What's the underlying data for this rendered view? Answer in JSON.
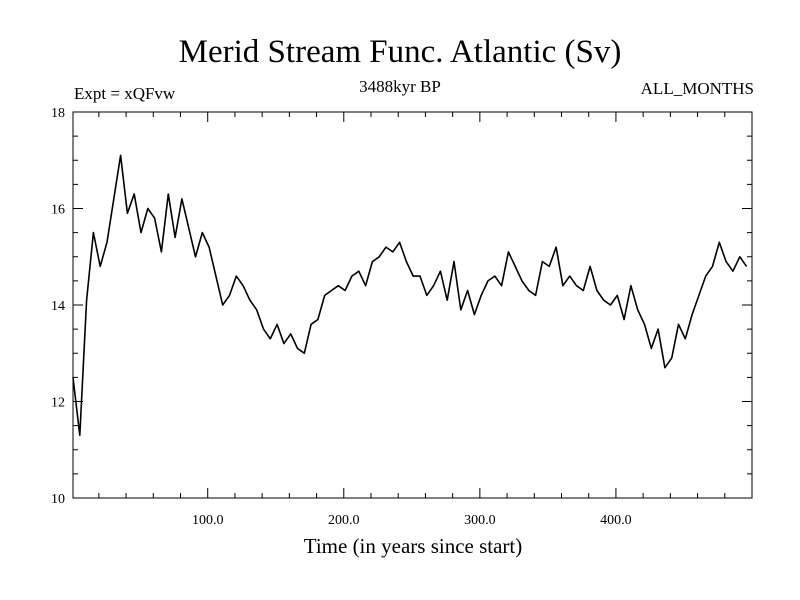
{
  "chart_data": {
    "type": "line",
    "title": "Merid Stream Func. Atlantic (Sv)",
    "subtitle": "3488kyr BP",
    "left_label": "Expt = xQFvw",
    "right_label": "ALL_MONTHS",
    "xlabel": "Time (in years since start)",
    "ylabel": "",
    "xlim": [
      1,
      500
    ],
    "ylim": [
      10,
      18
    ],
    "xticks": [
      100,
      200,
      300,
      400
    ],
    "xtick_labels": [
      "100.0",
      "200.0",
      "300.0",
      "400.0"
    ],
    "yticks": [
      10,
      12,
      14,
      16,
      18
    ],
    "ytick_labels": [
      "10",
      "12",
      "14",
      "16",
      "18"
    ],
    "series": [
      {
        "name": "Merid Stream Func. Atlantic",
        "x_start": 1,
        "x_step": 5,
        "values": [
          12.5,
          11.3,
          14.1,
          15.5,
          14.8,
          15.3,
          16.2,
          17.1,
          15.9,
          16.3,
          15.5,
          16.0,
          15.8,
          15.1,
          16.3,
          15.4,
          16.2,
          15.6,
          15.0,
          15.5,
          15.2,
          14.6,
          14.0,
          14.2,
          14.6,
          14.4,
          14.1,
          13.9,
          13.5,
          13.3,
          13.6,
          13.2,
          13.4,
          13.1,
          13.0,
          13.6,
          13.7,
          14.2,
          14.3,
          14.4,
          14.3,
          14.6,
          14.7,
          14.4,
          14.9,
          15.0,
          15.2,
          15.1,
          15.3,
          14.9,
          14.6,
          14.6,
          14.2,
          14.4,
          14.7,
          14.1,
          14.9,
          13.9,
          14.3,
          13.8,
          14.2,
          14.5,
          14.6,
          14.4,
          15.1,
          14.8,
          14.5,
          14.3,
          14.2,
          14.9,
          14.8,
          15.2,
          14.4,
          14.6,
          14.4,
          14.3,
          14.8,
          14.3,
          14.1,
          14.0,
          14.2,
          13.7,
          14.4,
          13.9,
          13.6,
          13.1,
          13.5,
          12.7,
          12.9,
          13.6,
          13.3,
          13.8,
          14.2,
          14.6,
          14.8,
          15.3,
          14.9,
          14.7,
          15.0,
          14.8
        ]
      }
    ]
  }
}
